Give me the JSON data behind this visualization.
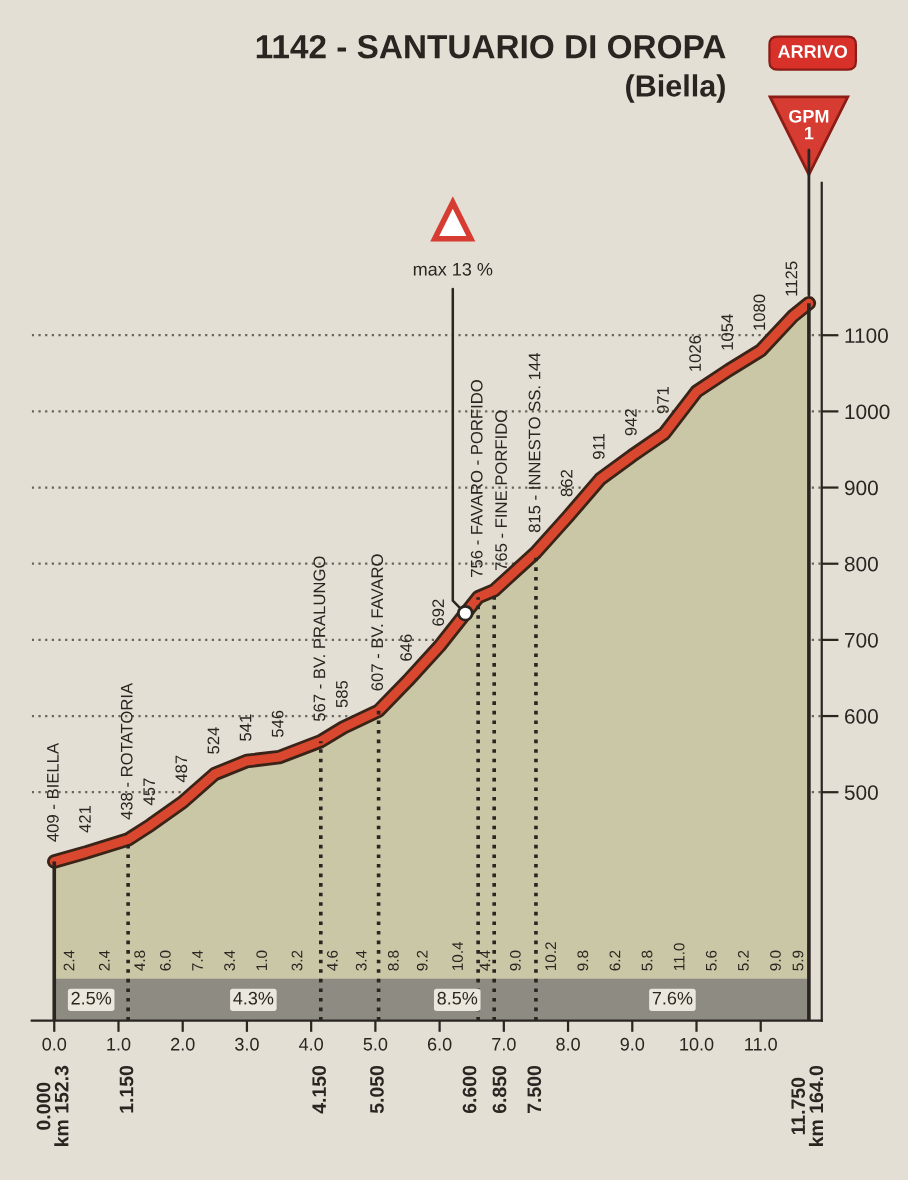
{
  "chart_data": {
    "type": "area",
    "title": "1142 - SANTUARIO DI OROPA",
    "subtitle": "(Biella)",
    "x": [
      0,
      0.5,
      1.15,
      1.5,
      2.0,
      2.5,
      3.0,
      3.5,
      4.15,
      4.5,
      5.05,
      5.5,
      6.0,
      6.6,
      6.85,
      7.5,
      8.0,
      8.5,
      9.0,
      9.5,
      10.0,
      10.5,
      11.0,
      11.5,
      11.75
    ],
    "values": [
      409,
      421,
      438,
      457,
      487,
      524,
      541,
      546,
      567,
      585,
      607,
      646,
      692,
      756,
      765,
      815,
      862,
      911,
      942,
      971,
      1026,
      1054,
      1080,
      1125,
      1142
    ],
    "color": "#d9472f",
    "value_labels": [
      "409 - BIELLA",
      "421",
      "438 - ROTATORIA",
      "457",
      "487",
      "524",
      "541",
      "546",
      "567 - BV. PRALUNGO",
      "585",
      "607 - BV. FAVARO",
      "646",
      "692",
      "756 - FAVARO - PORFIDO",
      "765 - FINE PORFIDO",
      "815 - INNESTO SS. 144",
      "862",
      "911",
      "942",
      "971",
      "1026",
      "1054",
      "1080",
      "1125",
      null
    ],
    "xlim": [
      -0.35,
      11.95
    ],
    "ylim": [
      200,
      1300
    ],
    "xticks": [
      {
        "value": 0,
        "label": "0.0"
      },
      {
        "value": 1,
        "label": "1.0"
      },
      {
        "value": 2,
        "label": "2.0"
      },
      {
        "value": 3,
        "label": "3.0"
      },
      {
        "value": 4,
        "label": "4.0"
      },
      {
        "value": 5,
        "label": "5.0"
      },
      {
        "value": 6,
        "label": "6.0"
      },
      {
        "value": 7,
        "label": "7.0"
      },
      {
        "value": 8,
        "label": "8.0"
      },
      {
        "value": 9,
        "label": "9.0"
      },
      {
        "value": 10,
        "label": "10.0"
      },
      {
        "value": 11,
        "label": "11.0"
      }
    ],
    "yticks": [
      500,
      600,
      700,
      800,
      900,
      1000,
      1100
    ],
    "grid": "y",
    "ref_lines": [
      {
        "axis": "x",
        "value": 0,
        "label": "0.000\nkm 152.3",
        "line_style": "solid"
      },
      {
        "axis": "x",
        "value": 1.15,
        "label": "1.150",
        "line_style": "dotted"
      },
      {
        "axis": "x",
        "value": 4.15,
        "label": "4.150",
        "line_style": "dotted"
      },
      {
        "axis": "x",
        "value": 5.05,
        "label": "5.050",
        "line_style": "dotted"
      },
      {
        "axis": "x",
        "value": 6.6,
        "label": "6.600",
        "line_style": "dotted"
      },
      {
        "axis": "x",
        "value": 6.85,
        "label": "6.850",
        "line_style": "dotted"
      },
      {
        "axis": "x",
        "value": 7.5,
        "label": "7.500",
        "line_style": "dotted"
      },
      {
        "axis": "x",
        "value": 11.75,
        "label": "11.750\nkm 164.0",
        "line_style": "solid"
      }
    ],
    "bands": [
      {
        "axis": "x",
        "from": 0,
        "to": 1.15,
        "label": "2.5%",
        "color": "#8d8b82"
      },
      {
        "axis": "x",
        "from": 1.15,
        "to": 5.05,
        "label": "4.3%",
        "color": "#8d8b82"
      },
      {
        "axis": "x",
        "from": 5.05,
        "to": 7.5,
        "label": "8.5%",
        "color": "#8d8b82"
      },
      {
        "axis": "x",
        "from": 7.5,
        "to": 11.75,
        "label": "7.6%",
        "color": "#8d8b82"
      }
    ],
    "annotations": [
      "ARRIVO",
      {
        "text": "GPM\n1",
        "x": 11.75,
        "y": 1142
      },
      {
        "text": "max 13 %",
        "x": 6.4,
        "y": 735
      },
      {
        "text": "2.4",
        "x": 0.25,
        "y": 265
      },
      {
        "text": "2.4",
        "x": 0.8,
        "y": 265
      },
      {
        "text": "4.8",
        "x": 1.35,
        "y": 265
      },
      {
        "text": "6.0",
        "x": 1.75,
        "y": 265
      },
      {
        "text": "7.4",
        "x": 2.25,
        "y": 265
      },
      {
        "text": "3.4",
        "x": 2.75,
        "y": 265
      },
      {
        "text": "1.0",
        "x": 3.25,
        "y": 265
      },
      {
        "text": "3.2",
        "x": 3.8,
        "y": 265
      },
      {
        "text": "4.6",
        "x": 4.35,
        "y": 265
      },
      {
        "text": "3.4",
        "x": 4.8,
        "y": 265
      },
      {
        "text": "8.8",
        "x": 5.3,
        "y": 265
      },
      {
        "text": "9.2",
        "x": 5.75,
        "y": 265
      },
      {
        "text": "10.4",
        "x": 6.3,
        "y": 265
      },
      {
        "text": "4.4",
        "x": 6.725,
        "y": 265
      },
      {
        "text": "9.0",
        "x": 7.2,
        "y": 265
      },
      {
        "text": "10.2",
        "x": 7.75,
        "y": 265
      },
      {
        "text": "9.8",
        "x": 8.25,
        "y": 265
      },
      {
        "text": "6.2",
        "x": 8.75,
        "y": 265
      },
      {
        "text": "5.8",
        "x": 9.25,
        "y": 265
      },
      {
        "text": "11.0",
        "x": 9.75,
        "y": 265
      },
      {
        "text": "5.6",
        "x": 10.25,
        "y": 265
      },
      {
        "text": "5.2",
        "x": 10.75,
        "y": 265
      },
      {
        "text": "9.0",
        "x": 11.25,
        "y": 265
      },
      {
        "text": "5.9",
        "x": 11.6,
        "y": 265
      }
    ]
  }
}
